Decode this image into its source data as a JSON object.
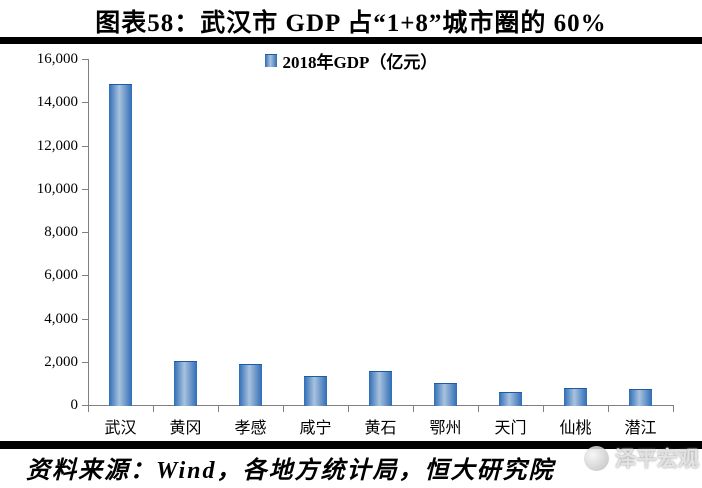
{
  "page": {
    "title": "图表58：武汉市 GDP 占“1+8”城市圈的 60%",
    "source": "资料来源：Wind，各地方统计局，恒大研究院",
    "watermark": "泽平宏观"
  },
  "chart_data": {
    "type": "bar",
    "title": "图表58：武汉市 GDP 占“1+8”城市圈的 60%",
    "legend": "2018年GDP（亿元）",
    "legend_position": "top-center",
    "categories": [
      "武汉",
      "黄冈",
      "孝感",
      "咸宁",
      "黄石",
      "鄂州",
      "天门",
      "仙桃",
      "潜江"
    ],
    "values": [
      14847,
      2035,
      1913,
      1362,
      1587,
      1005,
      589,
      800,
      720
    ],
    "xlabel": "",
    "ylabel": "",
    "ylim": [
      0,
      16000
    ],
    "ytick_step": 2000,
    "ytick_labels": [
      "0",
      "2,000",
      "4,000",
      "6,000",
      "8,000",
      "10,000",
      "12,000",
      "14,000",
      "16,000"
    ],
    "grid": false,
    "colors": {
      "bar_edge": "#2f6db6",
      "bar_center": "#a9c2de",
      "bar_border": "#1e5ba5",
      "axis": "#808080",
      "text": "#000000"
    }
  }
}
